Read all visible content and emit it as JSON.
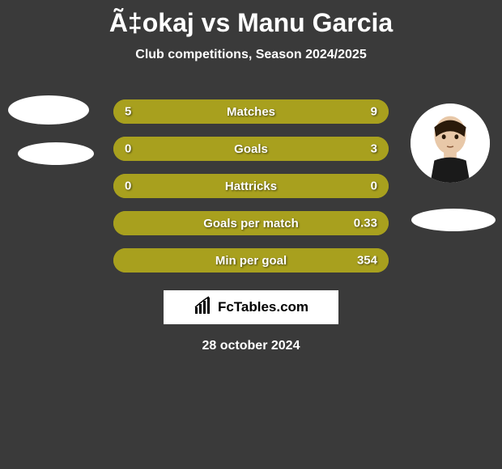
{
  "title": "Ã‡okaj vs Manu Garcia",
  "subtitle": "Club competitions, Season 2024/2025",
  "date": "28 october 2024",
  "brand": "FcTables.com",
  "colors": {
    "background": "#3a3a3a",
    "bar_left": "#a8a01e",
    "bar_right": "#a8a01e",
    "bar_neutral": "#a8a01e",
    "text": "#ffffff"
  },
  "stats": [
    {
      "label": "Matches",
      "left_val": "5",
      "right_val": "9",
      "left_pct": 36,
      "right_pct": 64,
      "left_color": "#a8a01e",
      "right_color": "#a8a01e"
    },
    {
      "label": "Goals",
      "left_val": "0",
      "right_val": "3",
      "left_pct": 0,
      "right_pct": 100,
      "left_color": "#a8a01e",
      "right_color": "#a8a01e"
    },
    {
      "label": "Hattricks",
      "left_val": "0",
      "right_val": "0",
      "left_pct": 100,
      "right_pct": 0,
      "left_color": "#a8a01e",
      "right_color": "#a8a01e"
    },
    {
      "label": "Goals per match",
      "left_val": "",
      "right_val": "0.33",
      "left_pct": 0,
      "right_pct": 100,
      "left_color": "#a8a01e",
      "right_color": "#a8a01e"
    },
    {
      "label": "Min per goal",
      "left_val": "",
      "right_val": "354",
      "left_pct": 0,
      "right_pct": 100,
      "left_color": "#a8a01e",
      "right_color": "#a8a01e"
    }
  ]
}
